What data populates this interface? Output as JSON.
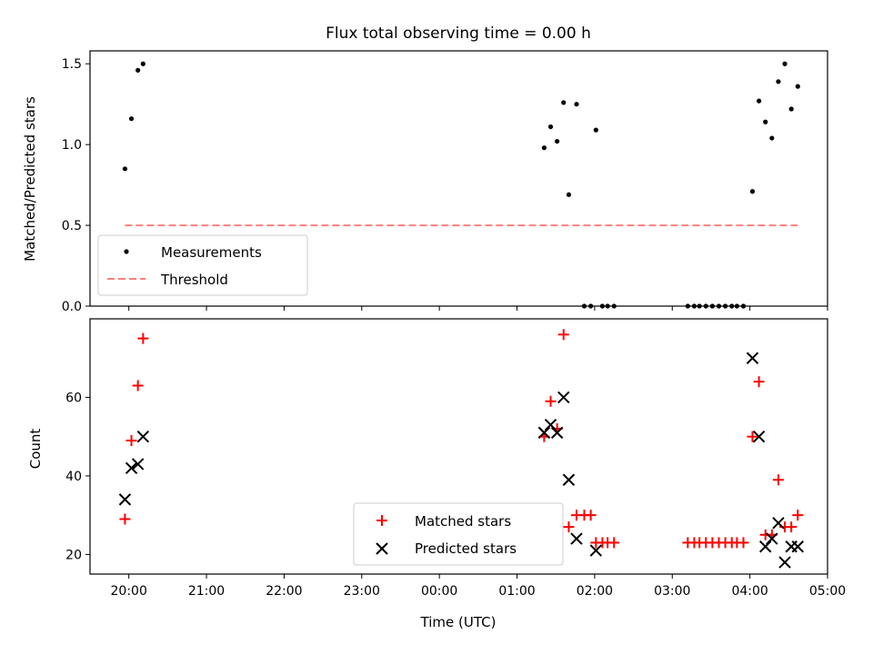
{
  "chart_data": [
    {
      "type": "scatter",
      "title": "Flux total observing time = 0.00 h",
      "xlabel": "",
      "ylabel": "Matched/Predicted stars",
      "ylim": [
        0,
        1.58
      ],
      "xlim": [
        "19:30",
        "05:00"
      ],
      "yticks": [
        "0.0",
        "0.5",
        "1.0",
        "1.5"
      ],
      "grid": false,
      "legend_position": "lower-left",
      "series": [
        {
          "name": "Measurements",
          "marker": "dot",
          "color": "#000000",
          "points": [
            [
              "19:57",
              0.85
            ],
            [
              "20:02",
              1.16
            ],
            [
              "20:07",
              1.46
            ],
            [
              "20:11",
              1.5
            ],
            [
              "01:21",
              0.98
            ],
            [
              "01:26",
              1.11
            ],
            [
              "01:31",
              1.02
            ],
            [
              "01:36",
              1.26
            ],
            [
              "01:40",
              0.69
            ],
            [
              "01:46",
              1.25
            ],
            [
              "01:52",
              0.0
            ],
            [
              "01:57",
              0.0
            ],
            [
              "02:01",
              1.09
            ],
            [
              "02:06",
              0.0
            ],
            [
              "02:10",
              0.0
            ],
            [
              "02:15",
              0.0
            ],
            [
              "03:12",
              0.0
            ],
            [
              "03:17",
              0.0
            ],
            [
              "03:21",
              0.0
            ],
            [
              "03:26",
              0.0
            ],
            [
              "03:31",
              0.0
            ],
            [
              "03:36",
              0.0
            ],
            [
              "03:41",
              0.0
            ],
            [
              "03:46",
              0.0
            ],
            [
              "03:50",
              0.0
            ],
            [
              "03:55",
              0.0
            ],
            [
              "04:02",
              0.71
            ],
            [
              "04:07",
              1.27
            ],
            [
              "04:12",
              1.14
            ],
            [
              "04:17",
              1.04
            ],
            [
              "04:22",
              1.39
            ],
            [
              "04:27",
              1.5
            ],
            [
              "04:32",
              1.22
            ],
            [
              "04:37",
              1.36
            ]
          ]
        },
        {
          "name": "Threshold",
          "marker": "dashed-line",
          "color": "#ff7f7f",
          "points": [
            [
              "19:57",
              0.5
            ],
            [
              "04:37",
              0.5
            ]
          ]
        }
      ]
    },
    {
      "type": "scatter",
      "title": "",
      "xlabel": "Time (UTC)",
      "ylabel": "Count",
      "ylim": [
        15,
        80
      ],
      "xlim": [
        "19:30",
        "05:00"
      ],
      "xticks": [
        "20:00",
        "21:00",
        "22:00",
        "23:00",
        "00:00",
        "01:00",
        "02:00",
        "03:00",
        "04:00",
        "05:00"
      ],
      "yticks": [
        "20",
        "40",
        "60"
      ],
      "grid": false,
      "legend_position": "lower-center",
      "series": [
        {
          "name": "Matched stars",
          "marker": "plus",
          "color": "#ff0000",
          "points": [
            [
              "19:57",
              29
            ],
            [
              "20:02",
              49
            ],
            [
              "20:07",
              63
            ],
            [
              "20:11",
              75
            ],
            [
              "01:21",
              50
            ],
            [
              "01:26",
              59
            ],
            [
              "01:31",
              52
            ],
            [
              "01:36",
              76
            ],
            [
              "01:40",
              27
            ],
            [
              "01:46",
              30
            ],
            [
              "01:52",
              30
            ],
            [
              "01:57",
              30
            ],
            [
              "02:01",
              23
            ],
            [
              "02:06",
              23
            ],
            [
              "02:10",
              23
            ],
            [
              "02:15",
              23
            ],
            [
              "03:12",
              23
            ],
            [
              "03:17",
              23
            ],
            [
              "03:21",
              23
            ],
            [
              "03:26",
              23
            ],
            [
              "03:31",
              23
            ],
            [
              "03:36",
              23
            ],
            [
              "03:41",
              23
            ],
            [
              "03:46",
              23
            ],
            [
              "03:50",
              23
            ],
            [
              "03:55",
              23
            ],
            [
              "04:02",
              50
            ],
            [
              "04:07",
              64
            ],
            [
              "04:12",
              25
            ],
            [
              "04:17",
              25
            ],
            [
              "04:22",
              39
            ],
            [
              "04:27",
              27
            ],
            [
              "04:32",
              27
            ],
            [
              "04:37",
              30
            ]
          ]
        },
        {
          "name": "Predicted stars",
          "marker": "x",
          "color": "#000000",
          "points": [
            [
              "19:57",
              34
            ],
            [
              "20:02",
              42
            ],
            [
              "20:07",
              43
            ],
            [
              "20:11",
              50
            ],
            [
              "01:21",
              51
            ],
            [
              "01:26",
              53
            ],
            [
              "01:31",
              51
            ],
            [
              "01:36",
              60
            ],
            [
              "01:40",
              39
            ],
            [
              "01:46",
              24
            ],
            [
              "02:01",
              21
            ],
            [
              "04:02",
              70
            ],
            [
              "04:07",
              50
            ],
            [
              "04:12",
              22
            ],
            [
              "04:17",
              24
            ],
            [
              "04:22",
              28
            ],
            [
              "04:27",
              18
            ],
            [
              "04:32",
              22
            ],
            [
              "04:37",
              22
            ]
          ]
        }
      ]
    }
  ]
}
